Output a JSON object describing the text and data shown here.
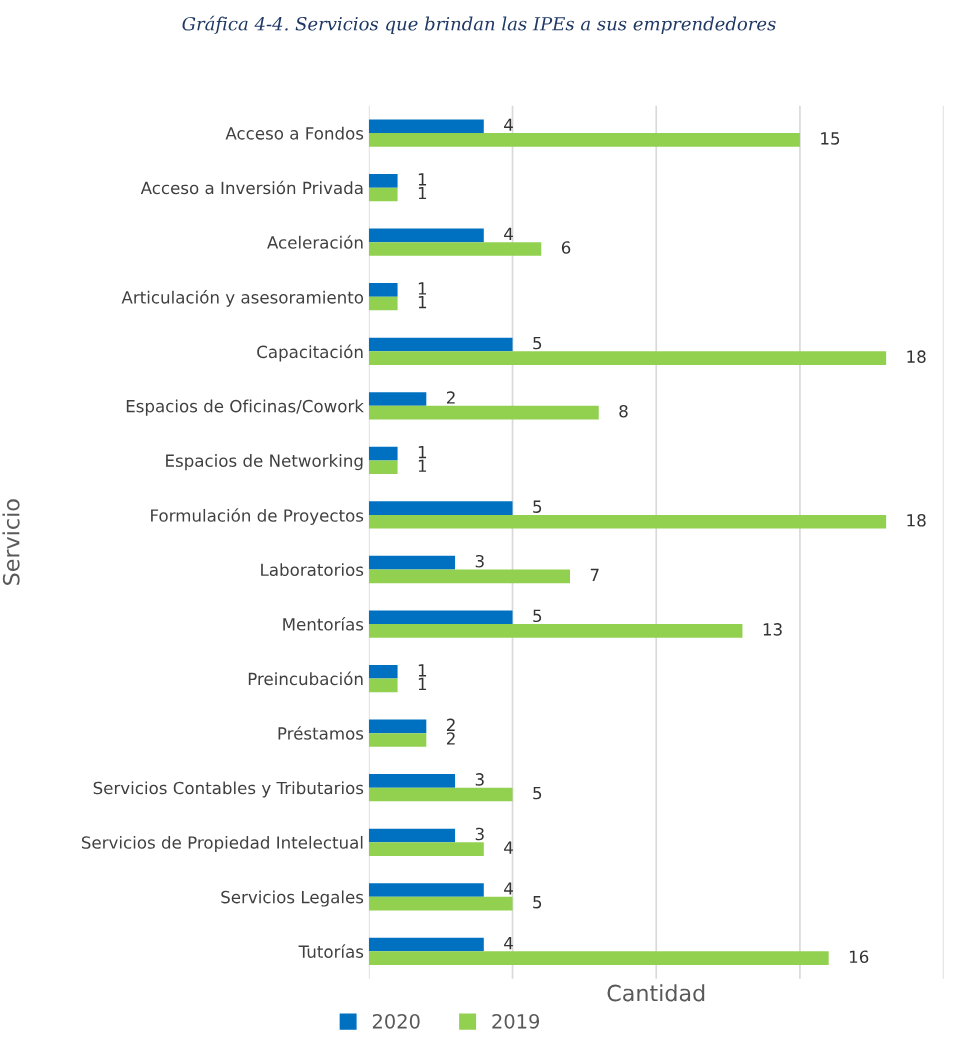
{
  "chart_data": {
    "type": "bar",
    "orientation": "horizontal",
    "title": "Gráfica 4-4. Servicios que brindan las IPEs a sus emprendedores",
    "xlabel": "Cantidad",
    "ylabel": "Servicio",
    "categories": [
      "Acceso a Fondos",
      "Acceso a Inversión Privada",
      "Aceleración",
      "Articulación y asesoramiento",
      "Capacitación",
      "Espacios de Oficinas/Cowork",
      "Espacios de Networking",
      "Formulación de Proyectos",
      "Laboratorios",
      "Mentorías",
      "Preincubación",
      "Préstamos",
      "Servicios Contables y Tributarios",
      "Servicios de Propiedad Intelectual",
      "Servicios Legales",
      "Tutorías"
    ],
    "series": [
      {
        "name": "2020",
        "color": "#0070c0",
        "values": [
          4,
          1,
          4,
          1,
          5,
          2,
          1,
          5,
          3,
          5,
          1,
          2,
          3,
          3,
          4,
          4
        ]
      },
      {
        "name": "2019",
        "color": "#92d050",
        "values": [
          15,
          1,
          6,
          1,
          18,
          8,
          1,
          18,
          7,
          13,
          1,
          2,
          5,
          4,
          5,
          16
        ]
      }
    ],
    "xlim": [
      0,
      20
    ],
    "xticks": [
      {
        "value": 0,
        "label": null
      },
      {
        "value": 5,
        "label": null
      },
      {
        "value": 10,
        "label": null
      },
      {
        "value": 15,
        "label": null
      },
      {
        "value": 20,
        "label": null
      }
    ],
    "tick_labels": "y",
    "grid": "x",
    "legend": "bottom",
    "data_labels": true
  }
}
